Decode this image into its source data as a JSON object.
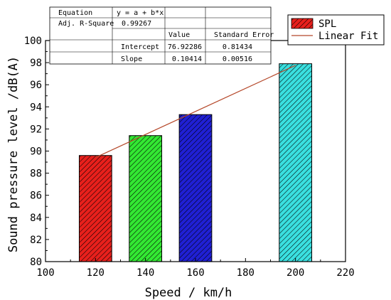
{
  "chart_data": {
    "type": "bar",
    "xlabel": "Speed / km/h",
    "ylabel": "Sound pressure level /dB(A)",
    "xlim": [
      100,
      220
    ],
    "ylim": [
      80,
      100
    ],
    "xticks": [
      100,
      120,
      140,
      160,
      180,
      200,
      220
    ],
    "yticks": [
      80,
      82,
      84,
      86,
      88,
      90,
      92,
      94,
      96,
      98,
      100
    ],
    "bar_width": 13,
    "grid": false,
    "legend_position": "top-right",
    "bars": [
      {
        "x": 120,
        "value": 89.6,
        "color": "#e8201c"
      },
      {
        "x": 140,
        "value": 91.4,
        "color": "#33e833"
      },
      {
        "x": 160,
        "value": 93.3,
        "color": "#2020d4"
      },
      {
        "x": 200,
        "value": 97.9,
        "color": "#3ae0e0"
      }
    ],
    "fit_line": {
      "color": "#b5482a",
      "from_x": 120,
      "to_x": 200
    },
    "legend": [
      {
        "label": "SPL",
        "kind": "bar",
        "color": "#e8201c"
      },
      {
        "label": "Linear Fit",
        "kind": "line",
        "color": "#b5482a"
      }
    ],
    "fit_table": {
      "equation_label": "Equation",
      "equation": "y = a + b*x",
      "r2_label": "Adj. R-Square",
      "r2_value": "0.99267",
      "value_header": "Value",
      "stderr_header": "Standard Error",
      "rows": [
        {
          "param": "Intercept",
          "value": "76.92286",
          "stderr": "0.81434"
        },
        {
          "param": "Slope",
          "value": "0.10414",
          "stderr": "0.00516"
        }
      ]
    },
    "intercept": 76.92286,
    "slope": 0.10414
  }
}
